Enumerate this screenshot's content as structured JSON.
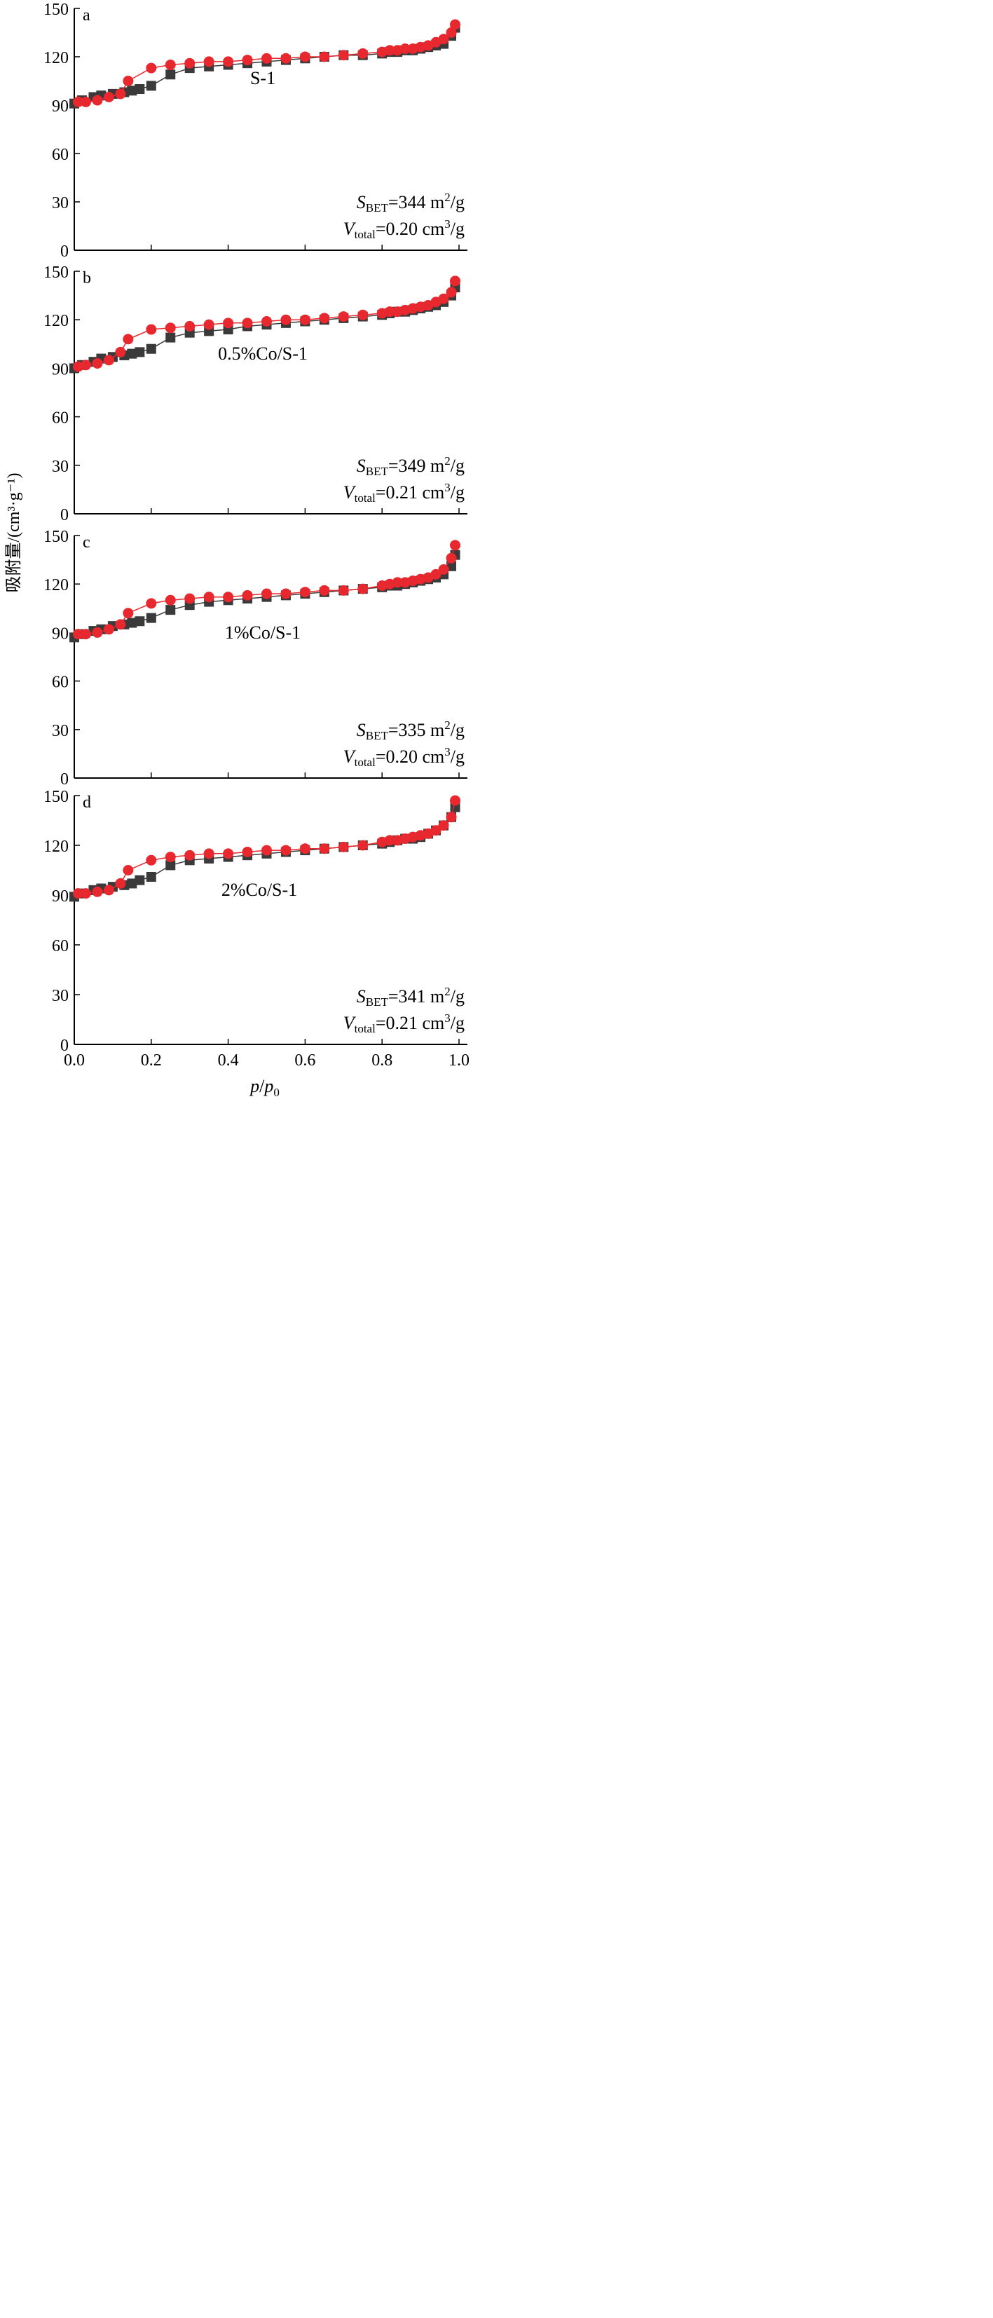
{
  "chart_data": {
    "type": "line",
    "y_axis_title": "吸附量/(cm³·g⁻¹)",
    "x_axis_title": {
      "main": "p",
      "sep": "/",
      "sub_base": "p",
      "sub_index": "0"
    },
    "x_ticks": [
      "0.0",
      "0.2",
      "0.4",
      "0.6",
      "0.8",
      "1.0"
    ],
    "xlim": [
      0,
      1
    ],
    "panels": [
      {
        "letter": "a",
        "sample": "S-1",
        "ylim": [
          0,
          150
        ],
        "y_ticks": [
          "150",
          "120",
          "90",
          "60",
          "30",
          "0"
        ],
        "annotation": {
          "s_sub": "BET",
          "s_value": "=344 m",
          "s_unit_sup": "2",
          "s_tail": "/g",
          "v_sub": "total",
          "v_value": "=0.20 cm",
          "v_unit_sup": "3",
          "v_tail": "/g"
        },
        "series": [
          {
            "marker": "square",
            "color": "#3a3a3a",
            "x": [
              0.0,
              0.02,
              0.05,
              0.07,
              0.1,
              0.13,
              0.15,
              0.17,
              0.2,
              0.25,
              0.3,
              0.35,
              0.4,
              0.45,
              0.5,
              0.55,
              0.6,
              0.65,
              0.7,
              0.75,
              0.8,
              0.82,
              0.84,
              0.86,
              0.88,
              0.9,
              0.92,
              0.94,
              0.96,
              0.98,
              0.99
            ],
            "y": [
              91,
              93,
              95,
              96,
              97,
              98,
              99,
              100,
              102,
              109,
              113,
              114,
              115,
              116,
              117,
              118,
              119,
              120,
              121,
              121,
              122,
              123,
              123,
              124,
              124,
              125,
              126,
              127,
              128,
              133,
              138
            ]
          },
          {
            "marker": "circle",
            "color": "#e8282f",
            "x": [
              0.01,
              0.03,
              0.06,
              0.09,
              0.12,
              0.14,
              0.2,
              0.25,
              0.3,
              0.35,
              0.4,
              0.45,
              0.5,
              0.55,
              0.6,
              0.65,
              0.7,
              0.75,
              0.8,
              0.82,
              0.84,
              0.86,
              0.88,
              0.9,
              0.92,
              0.94,
              0.96,
              0.98,
              0.99
            ],
            "y": [
              92,
              92,
              93,
              95,
              97,
              105,
              113,
              115,
              116,
              117,
              117,
              118,
              119,
              119,
              120,
              120,
              121,
              122,
              123,
              124,
              124,
              125,
              125,
              126,
              127,
              129,
              131,
              135,
              140
            ]
          }
        ]
      },
      {
        "letter": "b",
        "sample": "0.5%Co/S-1",
        "ylim": [
          0,
          150
        ],
        "y_ticks": [
          "150",
          "120",
          "90",
          "60",
          "30",
          "0"
        ],
        "annotation": {
          "s_sub": "BET",
          "s_value": "=349 m",
          "s_unit_sup": "2",
          "s_tail": "/g",
          "v_sub": "total",
          "v_value": "=0.21 cm",
          "v_unit_sup": "3",
          "v_tail": "/g"
        },
        "series": [
          {
            "marker": "square",
            "color": "#3a3a3a",
            "x": [
              0.0,
              0.02,
              0.05,
              0.07,
              0.1,
              0.13,
              0.15,
              0.17,
              0.2,
              0.25,
              0.3,
              0.35,
              0.4,
              0.45,
              0.5,
              0.55,
              0.6,
              0.65,
              0.7,
              0.75,
              0.8,
              0.82,
              0.84,
              0.86,
              0.88,
              0.9,
              0.92,
              0.94,
              0.96,
              0.98,
              0.99
            ],
            "y": [
              90,
              92,
              94,
              96,
              97,
              98,
              99,
              100,
              102,
              109,
              112,
              113,
              114,
              116,
              117,
              118,
              119,
              120,
              121,
              122,
              123,
              124,
              125,
              125,
              126,
              127,
              128,
              129,
              131,
              135,
              140
            ]
          },
          {
            "marker": "circle",
            "color": "#e8282f",
            "x": [
              0.01,
              0.03,
              0.06,
              0.09,
              0.12,
              0.14,
              0.2,
              0.25,
              0.3,
              0.35,
              0.4,
              0.45,
              0.5,
              0.55,
              0.6,
              0.65,
              0.7,
              0.75,
              0.8,
              0.82,
              0.84,
              0.86,
              0.88,
              0.9,
              0.92,
              0.94,
              0.96,
              0.98,
              0.99
            ],
            "y": [
              91,
              92,
              93,
              95,
              100,
              108,
              114,
              115,
              116,
              117,
              118,
              118,
              119,
              120,
              120,
              121,
              122,
              123,
              124,
              125,
              125,
              126,
              127,
              128,
              129,
              131,
              133,
              137,
              144
            ]
          }
        ]
      },
      {
        "letter": "c",
        "sample": "1%Co/S-1",
        "ylim": [
          0,
          150
        ],
        "y_ticks": [
          "150",
          "120",
          "90",
          "60",
          "30",
          "0"
        ],
        "annotation": {
          "s_sub": "BET",
          "s_value": "=335 m",
          "s_unit_sup": "2",
          "s_tail": "/g",
          "v_sub": "total",
          "v_value": "=0.20 cm",
          "v_unit_sup": "3",
          "v_tail": "/g"
        },
        "series": [
          {
            "marker": "square",
            "color": "#3a3a3a",
            "x": [
              0.0,
              0.02,
              0.05,
              0.07,
              0.1,
              0.13,
              0.15,
              0.17,
              0.2,
              0.25,
              0.3,
              0.35,
              0.4,
              0.45,
              0.5,
              0.55,
              0.6,
              0.65,
              0.7,
              0.75,
              0.8,
              0.82,
              0.84,
              0.86,
              0.88,
              0.9,
              0.92,
              0.94,
              0.96,
              0.98,
              0.99
            ],
            "y": [
              87,
              89,
              91,
              92,
              94,
              95,
              96,
              97,
              99,
              104,
              107,
              109,
              110,
              111,
              112,
              113,
              114,
              115,
              116,
              117,
              118,
              119,
              119,
              120,
              121,
              122,
              123,
              124,
              126,
              131,
              138
            ]
          },
          {
            "marker": "circle",
            "color": "#e8282f",
            "x": [
              0.01,
              0.03,
              0.06,
              0.09,
              0.12,
              0.14,
              0.2,
              0.25,
              0.3,
              0.35,
              0.4,
              0.45,
              0.5,
              0.55,
              0.6,
              0.65,
              0.7,
              0.75,
              0.8,
              0.82,
              0.84,
              0.86,
              0.88,
              0.9,
              0.92,
              0.94,
              0.96,
              0.98,
              0.99
            ],
            "y": [
              89,
              89,
              90,
              92,
              95,
              102,
              108,
              110,
              111,
              112,
              112,
              113,
              114,
              114,
              115,
              116,
              116,
              117,
              119,
              120,
              121,
              121,
              122,
              123,
              124,
              126,
              129,
              136,
              144
            ]
          }
        ]
      },
      {
        "letter": "d",
        "sample": "2%Co/S-1",
        "ylim": [
          0,
          150
        ],
        "y_ticks": [
          "150",
          "120",
          "90",
          "60",
          "30",
          "0"
        ],
        "annotation": {
          "s_sub": "BET",
          "s_value": "=341 m",
          "s_unit_sup": "2",
          "s_tail": "/g",
          "v_sub": "total",
          "v_value": "=0.21 cm",
          "v_unit_sup": "3",
          "v_tail": "/g"
        },
        "series": [
          {
            "marker": "square",
            "color": "#3a3a3a",
            "x": [
              0.0,
              0.02,
              0.05,
              0.07,
              0.1,
              0.13,
              0.15,
              0.17,
              0.2,
              0.25,
              0.3,
              0.35,
              0.4,
              0.45,
              0.5,
              0.55,
              0.6,
              0.65,
              0.7,
              0.75,
              0.8,
              0.82,
              0.84,
              0.86,
              0.88,
              0.9,
              0.92,
              0.94,
              0.96,
              0.98,
              0.99
            ],
            "y": [
              89,
              91,
              93,
              94,
              95,
              96,
              97,
              99,
              101,
              108,
              111,
              112,
              113,
              114,
              115,
              116,
              117,
              118,
              119,
              120,
              121,
              122,
              123,
              124,
              124,
              125,
              127,
              129,
              132,
              137,
              143
            ]
          },
          {
            "marker": "circle",
            "color": "#e8282f",
            "x": [
              0.01,
              0.03,
              0.06,
              0.09,
              0.12,
              0.14,
              0.2,
              0.25,
              0.3,
              0.35,
              0.4,
              0.45,
              0.5,
              0.55,
              0.6,
              0.65,
              0.7,
              0.75,
              0.8,
              0.82,
              0.84,
              0.86,
              0.88,
              0.9,
              0.92,
              0.94,
              0.96,
              0.98,
              0.99
            ],
            "y": [
              91,
              91,
              92,
              93,
              97,
              105,
              111,
              113,
              114,
              115,
              115,
              116,
              117,
              117,
              118,
              118,
              119,
              120,
              122,
              123,
              123,
              124,
              125,
              126,
              127,
              129,
              132,
              137,
              147
            ]
          }
        ]
      }
    ]
  }
}
